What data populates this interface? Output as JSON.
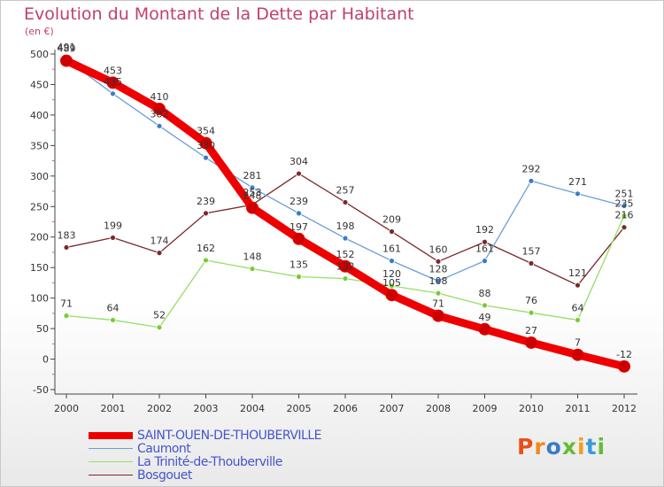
{
  "title": "Evolution du Montant de la Dette par Habitant",
  "subtitle": "(en €)",
  "logo": {
    "text": "Proxiti"
  },
  "chart_data": {
    "type": "line",
    "title": "Evolution du Montant de la Dette par Habitant",
    "ylabel": "(en €)",
    "xlabel": "",
    "ylim": [
      -50,
      500
    ],
    "yticks": [
      -50,
      0,
      50,
      100,
      150,
      200,
      250,
      300,
      350,
      400,
      450,
      500
    ],
    "x": [
      "2000",
      "2001",
      "2002",
      "2003",
      "2004",
      "2005",
      "2006",
      "2007",
      "2008",
      "2009",
      "2010",
      "2011",
      "2012"
    ],
    "grid": false,
    "legend": "bottom-left",
    "series": [
      {
        "name": "SAINT-OUEN-DE-THOUBERVILLE",
        "color": "#ee0000",
        "marker": "#cc0000",
        "thick": true,
        "values": [
          489,
          453,
          410,
          354,
          248,
          197,
          152,
          105,
          71,
          49,
          27,
          7,
          -12
        ]
      },
      {
        "name": "Caumont",
        "color": "#6a9ed8",
        "marker": "#3a7cc4",
        "thick": false,
        "values": [
          491,
          435,
          382,
          330,
          281,
          239,
          198,
          161,
          128,
          161,
          292,
          271,
          251
        ]
      },
      {
        "name": "La Trinité-de-Thouberville",
        "color": "#99dd66",
        "marker": "#77cc33",
        "thick": false,
        "values": [
          71,
          64,
          52,
          162,
          148,
          135,
          132,
          120,
          108,
          88,
          76,
          64,
          235
        ]
      },
      {
        "name": "Bosgouet",
        "color": "#7a2a2a",
        "marker": "#7a2a2a",
        "thick": false,
        "values": [
          183,
          199,
          174,
          239,
          253,
          304,
          257,
          209,
          160,
          192,
          157,
          121,
          216
        ]
      }
    ]
  }
}
